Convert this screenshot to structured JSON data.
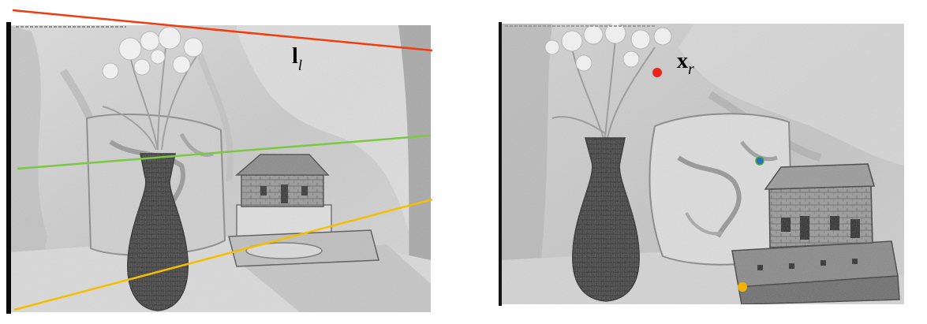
{
  "figure": {
    "left_view": {
      "line_label": {
        "main": "l",
        "sub": "l"
      },
      "epipolar_lines": [
        {
          "name": "red-line",
          "color": "#f03c0f"
        },
        {
          "name": "green-line",
          "color": "#7dc843"
        },
        {
          "name": "yellow-line",
          "color": "#f5be00"
        }
      ]
    },
    "right_view": {
      "point_label": {
        "main": "x",
        "sub": "r"
      },
      "points": [
        {
          "name": "red-point",
          "color": "#e8261c"
        },
        {
          "name": "blue-point",
          "color": "#2f6fb0"
        },
        {
          "name": "yellow-point",
          "color": "#f0b400"
        }
      ]
    }
  }
}
